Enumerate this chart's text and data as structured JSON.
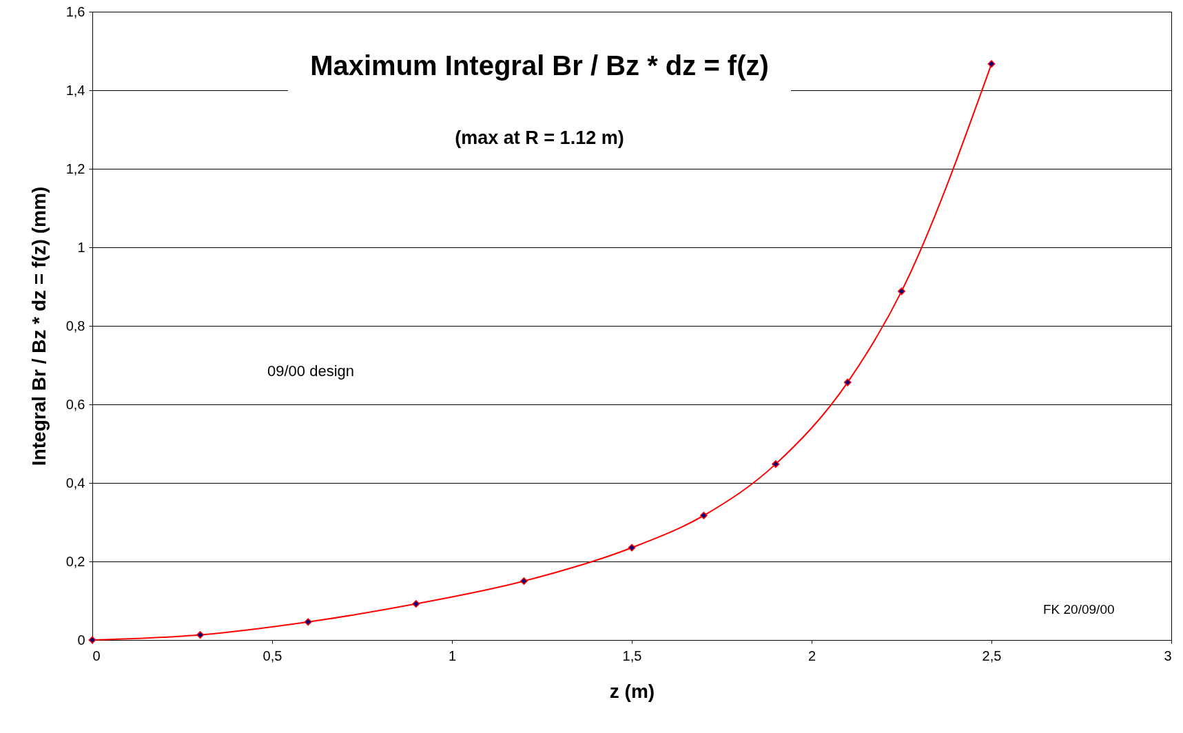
{
  "chart_data": {
    "type": "line",
    "title": "Maximum Integral Br / Bz * dz = f(z)",
    "subtitle": "(max at R = 1.12 m)",
    "xlabel": "z (m)",
    "ylabel": "Integral Br / Bz * dz = f(z) (mm)",
    "annotations": [
      "09/00 design",
      "FK 20/09/00"
    ],
    "x": [
      0,
      0.3,
      0.6,
      0.9,
      1.2,
      1.5,
      1.7,
      1.9,
      2.1,
      2.25,
      2.5
    ],
    "series": [
      {
        "color": "#ff0000",
        "values": [
          0,
          0.013,
          0.046,
          0.092,
          0.15,
          0.235,
          0.317,
          0.448,
          0.656,
          0.888,
          1.467
        ]
      }
    ],
    "xlim": [
      0,
      3
    ],
    "xticks": [
      {
        "value": 0,
        "label": "0"
      },
      {
        "value": 0.5,
        "label": "0,5"
      },
      {
        "value": 1,
        "label": "1"
      },
      {
        "value": 1.5,
        "label": "1,5"
      },
      {
        "value": 2,
        "label": "2"
      },
      {
        "value": 2.5,
        "label": "2,5"
      },
      {
        "value": 3,
        "label": "3"
      }
    ],
    "ylim": [
      0,
      1.6
    ],
    "yticks": [
      {
        "value": 0,
        "label": "0"
      },
      {
        "value": 0.2,
        "label": "0,2"
      },
      {
        "value": 0.4,
        "label": "0,4"
      },
      {
        "value": 0.6,
        "label": "0,6"
      },
      {
        "value": 0.8,
        "label": "0,8"
      },
      {
        "value": 1,
        "label": "1"
      },
      {
        "value": 1.2,
        "label": "1,2"
      },
      {
        "value": 1.4,
        "label": "1,4"
      },
      {
        "value": 1.6,
        "label": "1,6"
      }
    ],
    "grid": "y",
    "marker": "diamond",
    "line_style": "solid"
  }
}
